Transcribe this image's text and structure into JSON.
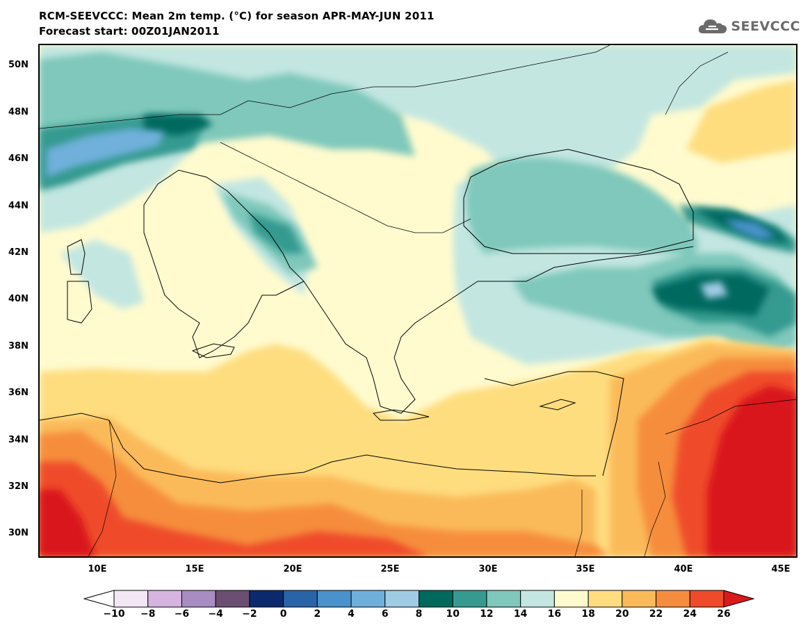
{
  "header": {
    "title": "RCM-SEEVCCC: Mean 2m temp. (°C) for season APR-MAY-JUN 2011",
    "subtitle": "Forecast start: 00Z01JAN2011",
    "logo_text": "SEEVCCC"
  },
  "map": {
    "lat_labels": [
      "50N",
      "48N",
      "46N",
      "44N",
      "42N",
      "40N",
      "38N",
      "36N",
      "34N",
      "32N",
      "30N"
    ],
    "lon_labels": [
      "10E",
      "15E",
      "20E",
      "25E",
      "30E",
      "35E",
      "40E",
      "45E"
    ]
  },
  "legend": {
    "labels": [
      "−10",
      "−8",
      "−6",
      "−4",
      "−2",
      "0",
      "2",
      "4",
      "6",
      "8",
      "10",
      "12",
      "14",
      "16",
      "18",
      "20",
      "22",
      "24",
      "26"
    ],
    "colors": [
      "#f3e6f5",
      "#d6b4e0",
      "#a88cc2",
      "#6b4f73",
      "#0b2a6e",
      "#2a64a8",
      "#4a92cb",
      "#6fb0db",
      "#a0cbe5",
      "#00695e",
      "#369a90",
      "#7fc8bb",
      "#c3e6e1",
      "#fffbcf",
      "#fedd7f",
      "#fbba5a",
      "#f68d3e",
      "#ef4b2a"
    ],
    "under_color": "#ffffff",
    "over_color": "#d9191c"
  }
}
